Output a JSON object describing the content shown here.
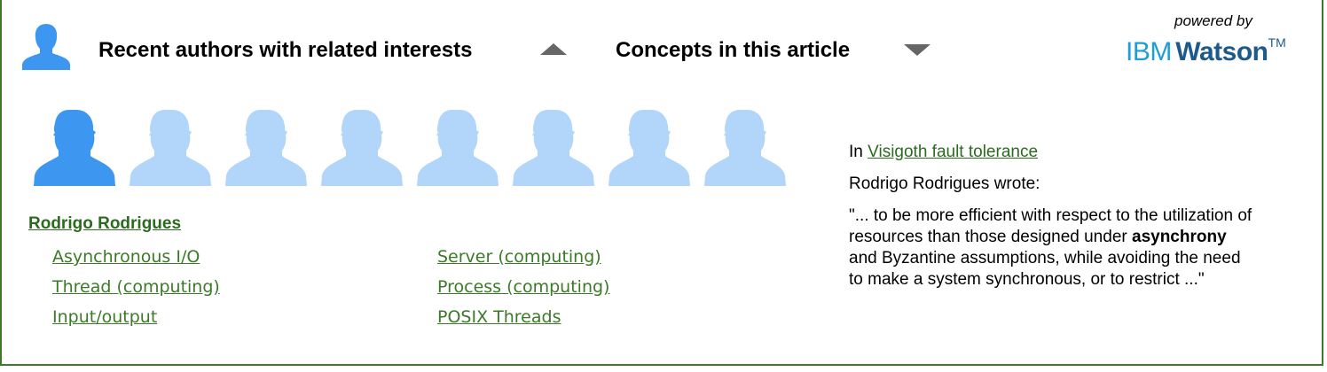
{
  "header": {
    "authors_label": "Recent authors with related interests",
    "concepts_label": "Concepts in this article",
    "powered_by": "powered by",
    "brand_ibm": "IBM",
    "brand_watson": "Watson",
    "brand_tm": "TM"
  },
  "author": {
    "name": "Rodrigo Rodrigues",
    "concepts_left": [
      "Asynchronous I/O",
      "Thread (computing)",
      "Input/output"
    ],
    "concepts_right": [
      "Server (computing)",
      "Process (computing)",
      "POSIX Threads"
    ]
  },
  "quote": {
    "in_prefix": "In",
    "article_title": "Visigoth fault tolerance",
    "wrote_line": "Rodrigo Rodrigues wrote:",
    "text_before": "\"... to be more efficient with respect to the utilization of resources than those designed under",
    "text_bold": "asynchrony",
    "text_after": "and Byzantine assumptions, while avoiding the need to make a system synchronous, or to restrict ...\""
  },
  "colors": {
    "frame": "#3c7a2a",
    "avatar_selected": "#3d96f0",
    "avatar_unselected": "#b2d6fa",
    "link_green": "#3b7a27",
    "ibm_blue": "#1d9ed8",
    "watson_blue": "#1d5a8c"
  },
  "icons": {
    "header_avatar": "person-silhouette-icon",
    "collapse": "triangle-up-icon",
    "expand": "triangle-down-icon"
  }
}
